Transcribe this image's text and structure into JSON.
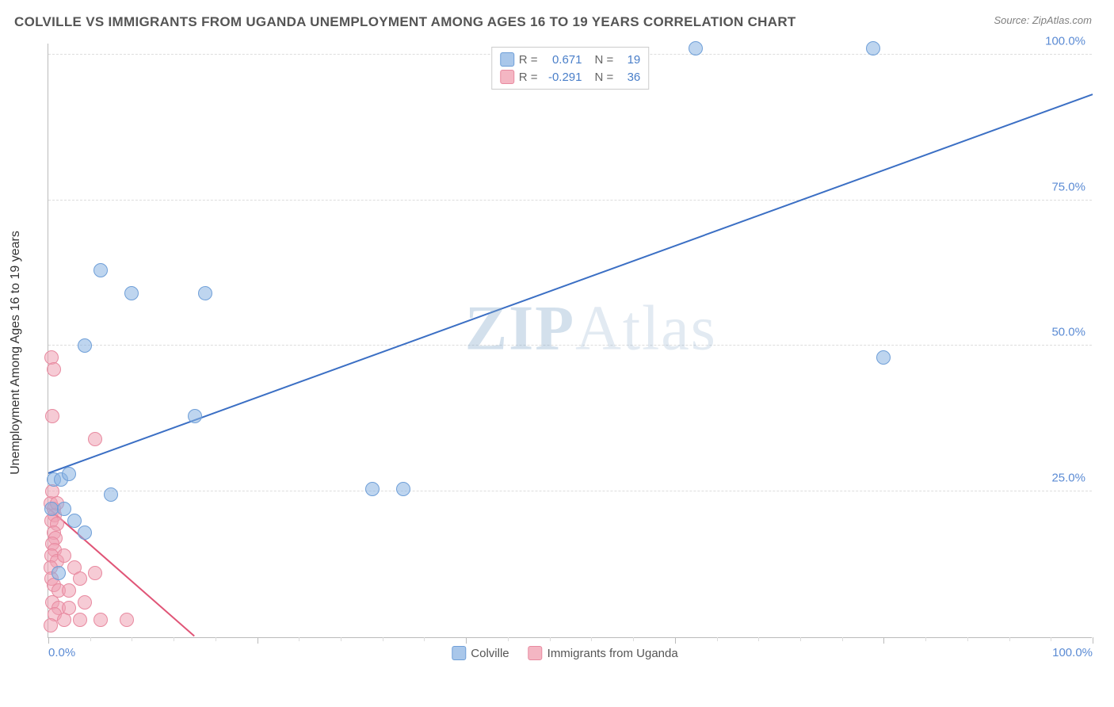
{
  "header": {
    "title": "COLVILLE VS IMMIGRANTS FROM UGANDA UNEMPLOYMENT AMONG AGES 16 TO 19 YEARS CORRELATION CHART",
    "source_prefix": "Source: ",
    "source_name": "ZipAtlas.com"
  },
  "watermark": {
    "left": "ZIP",
    "right": "Atlas"
  },
  "yaxis": {
    "label": "Unemployment Among Ages 16 to 19 years",
    "ticks": [
      {
        "pct": 25,
        "label": "25.0%"
      },
      {
        "pct": 50,
        "label": "50.0%"
      },
      {
        "pct": 75,
        "label": "75.0%"
      },
      {
        "pct": 100,
        "label": "100.0%"
      }
    ],
    "tick_color": "#5b8bd4"
  },
  "xaxis": {
    "min_label": "0.0%",
    "max_label": "100.0%",
    "label_color": "#5b8bd4",
    "major_ticks_pct": [
      0,
      20,
      40,
      60,
      80,
      100
    ],
    "minor_ticks_pct": [
      4,
      8,
      12,
      16,
      24,
      28,
      32,
      36,
      44,
      48,
      52,
      56,
      64,
      68,
      72,
      76,
      84,
      88,
      92,
      96
    ]
  },
  "legend_top": {
    "rows": [
      {
        "swatch_fill": "#a9c7ea",
        "swatch_stroke": "#6f9fd8",
        "r_label": "R =",
        "r_value": "0.671",
        "n_label": "N =",
        "n_value": "19",
        "value_color": "#4a7fc9"
      },
      {
        "swatch_fill": "#f4b6c3",
        "swatch_stroke": "#e88aa0",
        "r_label": "R =",
        "r_value": "-0.291",
        "n_label": "N =",
        "n_value": "36",
        "value_color": "#4a7fc9"
      }
    ],
    "label_color": "#666666"
  },
  "legend_bottom": {
    "items": [
      {
        "swatch_fill": "#a9c7ea",
        "swatch_stroke": "#6f9fd8",
        "label": "Colville"
      },
      {
        "swatch_fill": "#f4b6c3",
        "swatch_stroke": "#e88aa0",
        "label": "Immigrants from Uganda"
      }
    ]
  },
  "series": {
    "blue": {
      "fill": "rgba(137, 179, 226, 0.55)",
      "stroke": "#6f9fd8",
      "radius": 9,
      "points": [
        {
          "x": 0.5,
          "y": 27
        },
        {
          "x": 1.2,
          "y": 27
        },
        {
          "x": 2,
          "y": 28
        },
        {
          "x": 3.5,
          "y": 50
        },
        {
          "x": 5,
          "y": 63
        },
        {
          "x": 8,
          "y": 59
        },
        {
          "x": 15,
          "y": 59
        },
        {
          "x": 6,
          "y": 24.5
        },
        {
          "x": 2.5,
          "y": 20
        },
        {
          "x": 14,
          "y": 38
        },
        {
          "x": 1,
          "y": 11
        },
        {
          "x": 3.5,
          "y": 18
        },
        {
          "x": 0.3,
          "y": 22
        },
        {
          "x": 31,
          "y": 25.5
        },
        {
          "x": 34,
          "y": 25.5
        },
        {
          "x": 62,
          "y": 101
        },
        {
          "x": 79,
          "y": 101
        },
        {
          "x": 80,
          "y": 48
        },
        {
          "x": 1.5,
          "y": 22
        }
      ],
      "trend": {
        "x1": 0,
        "y1": 28,
        "x2": 100,
        "y2": 93,
        "color": "#3b6fc4",
        "width": 2
      }
    },
    "pink": {
      "fill": "rgba(238, 160, 178, 0.55)",
      "stroke": "#e88aa0",
      "radius": 9,
      "points": [
        {
          "x": 0.3,
          "y": 48
        },
        {
          "x": 0.5,
          "y": 46
        },
        {
          "x": 0.4,
          "y": 38
        },
        {
          "x": 4.5,
          "y": 34
        },
        {
          "x": 0.2,
          "y": 23
        },
        {
          "x": 0.4,
          "y": 25
        },
        {
          "x": 0.5,
          "y": 22
        },
        {
          "x": 0.6,
          "y": 21
        },
        {
          "x": 0.3,
          "y": 20
        },
        {
          "x": 0.8,
          "y": 19.5
        },
        {
          "x": 0.5,
          "y": 18
        },
        {
          "x": 0.7,
          "y": 17
        },
        {
          "x": 0.4,
          "y": 16
        },
        {
          "x": 0.6,
          "y": 15
        },
        {
          "x": 0.3,
          "y": 14
        },
        {
          "x": 0.8,
          "y": 13
        },
        {
          "x": 0.2,
          "y": 12
        },
        {
          "x": 1.5,
          "y": 14
        },
        {
          "x": 2.5,
          "y": 12
        },
        {
          "x": 0.3,
          "y": 10
        },
        {
          "x": 0.5,
          "y": 9
        },
        {
          "x": 1,
          "y": 8
        },
        {
          "x": 2,
          "y": 8
        },
        {
          "x": 3,
          "y": 10
        },
        {
          "x": 4.5,
          "y": 11
        },
        {
          "x": 0.4,
          "y": 6
        },
        {
          "x": 1,
          "y": 5
        },
        {
          "x": 0.6,
          "y": 4
        },
        {
          "x": 1.5,
          "y": 3
        },
        {
          "x": 3,
          "y": 3
        },
        {
          "x": 5,
          "y": 3
        },
        {
          "x": 7.5,
          "y": 3
        },
        {
          "x": 0.2,
          "y": 2
        },
        {
          "x": 2,
          "y": 5
        },
        {
          "x": 3.5,
          "y": 6
        },
        {
          "x": 0.8,
          "y": 23
        }
      ],
      "trend": {
        "x1": 0,
        "y1": 22,
        "x2": 14,
        "y2": 0,
        "color": "#e05577",
        "width": 2
      }
    }
  },
  "chart": {
    "xmin": 0,
    "xmax": 100,
    "ymin": 0,
    "ymax": 102
  }
}
